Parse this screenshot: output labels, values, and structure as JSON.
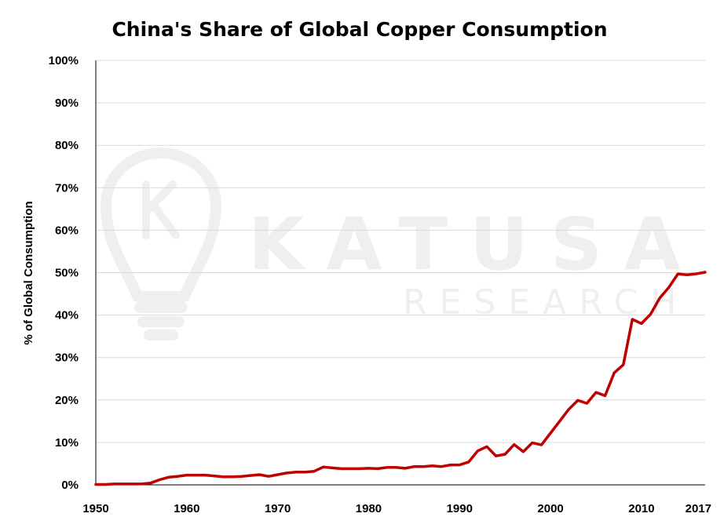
{
  "watermark": {
    "word": "KATUSA",
    "sub": "RESEARCH"
  },
  "chart_data": {
    "type": "line",
    "title": "China's Share of Global Copper Consumption",
    "xlabel": "",
    "ylabel": "% of Global Consumption",
    "xlim": [
      1950,
      2017
    ],
    "ylim": [
      0,
      100
    ],
    "x_ticks": [
      "1950",
      "1960",
      "1970",
      "1980",
      "1990",
      "2000",
      "2010",
      "2017"
    ],
    "y_ticks": [
      "0%",
      "10%",
      "20%",
      "30%",
      "40%",
      "50%",
      "60%",
      "70%",
      "80%",
      "90%",
      "100%"
    ],
    "grid": true,
    "legend": "none",
    "colors": {
      "line": "#c00000",
      "grid": "#d9d9d9",
      "axis": "#000000"
    },
    "series": [
      {
        "x": [
          1950,
          1951,
          1952,
          1953,
          1954,
          1955,
          1956,
          1957,
          1958,
          1959,
          1960,
          1961,
          1962,
          1963,
          1964,
          1965,
          1966,
          1967,
          1968,
          1969,
          1970,
          1971,
          1972,
          1973,
          1974,
          1975,
          1976,
          1977,
          1978,
          1979,
          1980,
          1981,
          1982,
          1983,
          1984,
          1985,
          1986,
          1987,
          1988,
          1989,
          1990,
          1991,
          1992,
          1993,
          1994,
          1995,
          1996,
          1997,
          1998,
          1999,
          2000,
          2001,
          2002,
          2003,
          2004,
          2005,
          2006,
          2007,
          2008,
          2009,
          2010,
          2011,
          2012,
          2013,
          2014,
          2015,
          2016,
          2017
        ],
        "values": [
          0.1,
          0.1,
          0.2,
          0.2,
          0.2,
          0.2,
          0.4,
          1.2,
          1.8,
          2.0,
          2.3,
          2.3,
          2.3,
          2.1,
          1.9,
          1.9,
          2.0,
          2.2,
          2.4,
          2.0,
          2.4,
          2.8,
          3.0,
          3.0,
          3.2,
          4.2,
          4.0,
          3.8,
          3.8,
          3.8,
          3.9,
          3.8,
          4.1,
          4.1,
          3.9,
          4.3,
          4.3,
          4.5,
          4.3,
          4.7,
          4.7,
          5.4,
          8.0,
          9.0,
          6.8,
          7.2,
          9.5,
          7.8,
          9.9,
          9.4,
          12.2,
          15.0,
          17.8,
          19.9,
          19.2,
          21.8,
          21.0,
          26.4,
          28.3,
          39.0,
          38.0,
          40.2,
          44.0,
          46.5,
          49.7,
          49.5,
          49.7,
          50.1
        ]
      }
    ]
  }
}
